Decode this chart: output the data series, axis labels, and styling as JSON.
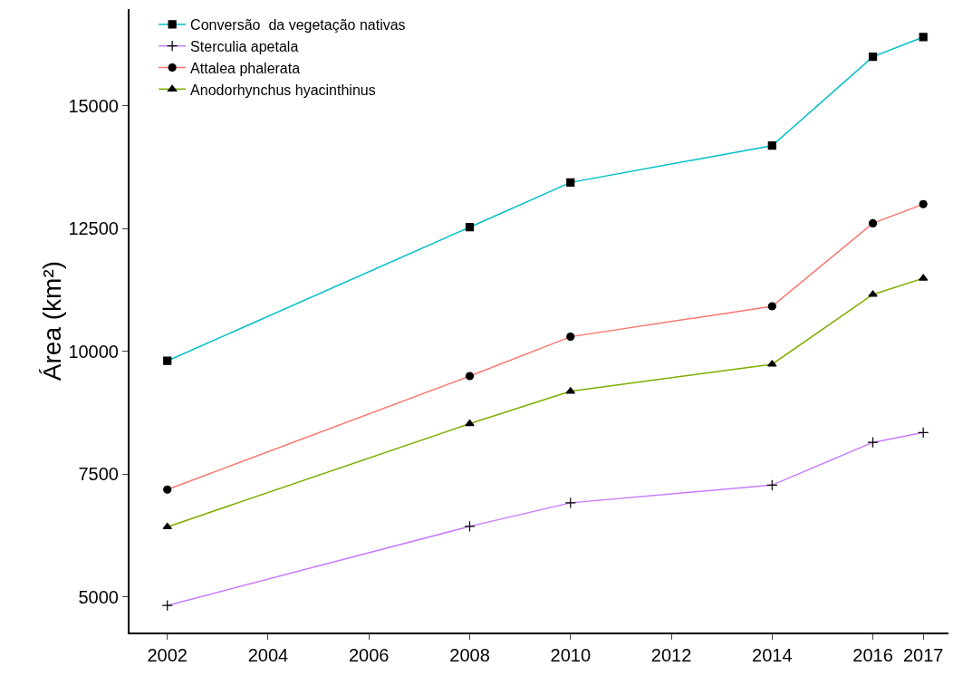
{
  "chart_data": {
    "type": "line",
    "ylabel": "Área (km²)",
    "x": [
      2002,
      2008,
      2010,
      2014,
      2016,
      2017
    ],
    "xlim": [
      2001.25,
      2017.5
    ],
    "xticks": [
      2002,
      2004,
      2006,
      2008,
      2010,
      2012,
      2014,
      2016,
      2017
    ],
    "ylim": [
      4280,
      16970
    ],
    "yticks": [
      5000,
      7500,
      10000,
      12500,
      15000
    ],
    "grid": false,
    "legend": "top left",
    "line_style": "solid",
    "series": [
      {
        "name": "Conversão  da vegetação nativas",
        "color": "#00bfc4",
        "marker": "square",
        "values": [
          9810,
          12530,
          13440,
          14190,
          16000,
          16400
        ]
      },
      {
        "name": "Sterculia apetala",
        "color": "#c77cff",
        "marker": "cross",
        "values": [
          4830,
          6440,
          6920,
          7280,
          8150,
          8350
        ]
      },
      {
        "name": "Attalea phalerata",
        "color": "#f8766d",
        "marker": "circle",
        "values": [
          7190,
          9500,
          10300,
          10920,
          12610,
          13000
        ]
      },
      {
        "name": "Anodorhynchus hyacinthinus",
        "color": "#7cae00",
        "marker": "triangle",
        "values": [
          6430,
          8530,
          9190,
          9740,
          11160,
          11490
        ]
      }
    ]
  }
}
